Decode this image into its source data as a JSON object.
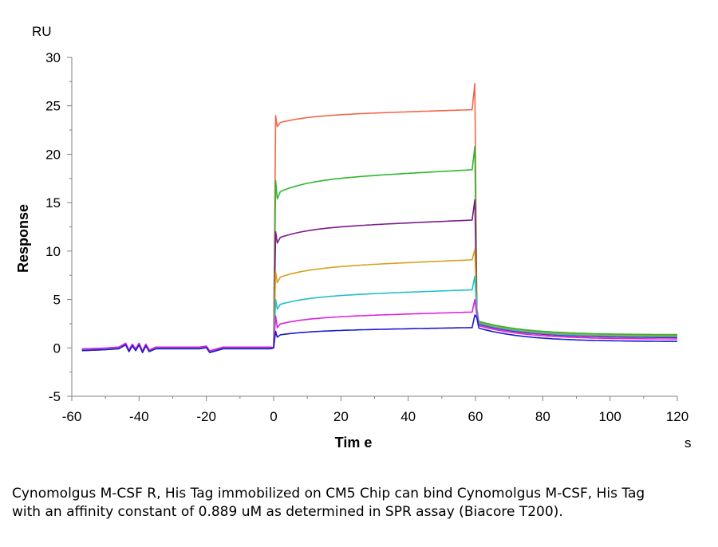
{
  "chart_data": {
    "type": "line",
    "y_unit": "RU",
    "x_unit": "s",
    "ylabel": "Response",
    "xlabel": "Tim e",
    "xlim": [
      -60,
      120
    ],
    "ylim": [
      -5,
      30
    ],
    "x_ticks": [
      -60,
      -40,
      -20,
      0,
      20,
      40,
      60,
      80,
      100,
      120
    ],
    "y_ticks": [
      -5,
      0,
      5,
      10,
      15,
      20,
      25,
      30
    ],
    "x_tick_labels": [
      "-60",
      "-40",
      "-20",
      "0",
      "20",
      "40",
      "60",
      "80",
      "100",
      "120"
    ],
    "y_tick_labels": [
      "-5",
      "0",
      "5",
      "10",
      "15",
      "20",
      "25",
      "30"
    ],
    "grid": false,
    "legend": "none",
    "series": [
      {
        "color": "#F4664A",
        "plateau_start": 23.2,
        "plateau_end": 24.6,
        "peak_start": 24.0,
        "peak_end": 27.3,
        "tail": 1.3
      },
      {
        "color": "#2DB82D",
        "plateau_start": 16.0,
        "plateau_end": 18.4,
        "peak_start": 17.3,
        "peak_end": 20.8,
        "tail": 1.35
      },
      {
        "color": "#7B1A8C",
        "plateau_start": 11.3,
        "plateau_end": 13.2,
        "peak_start": 12.0,
        "peak_end": 15.3,
        "tail": 1.05
      },
      {
        "color": "#D9A020",
        "plateau_start": 7.2,
        "plateau_end": 9.1,
        "peak_start": 7.9,
        "peak_end": 10.2,
        "tail": 1.2
      },
      {
        "color": "#20C0C8",
        "plateau_start": 4.4,
        "plateau_end": 6.0,
        "peak_start": 5.0,
        "peak_end": 7.4,
        "tail": 1.15
      },
      {
        "color": "#E020E0",
        "plateau_start": 2.4,
        "plateau_end": 3.7,
        "peak_start": 3.3,
        "peak_end": 5.0,
        "tail": 0.9
      },
      {
        "color": "#1A1AD0",
        "plateau_start": 1.3,
        "plateau_end": 2.1,
        "peak_start": 1.7,
        "peak_end": 3.4,
        "tail": 0.65
      }
    ]
  },
  "caption": "Cynomolgus M-CSF R, His Tag immobilized on CM5 Chip can bind Cynomolgus M-CSF, His Tag with an affinity constant of 0.889 uM as determined in SPR assay (Biacore T200)."
}
